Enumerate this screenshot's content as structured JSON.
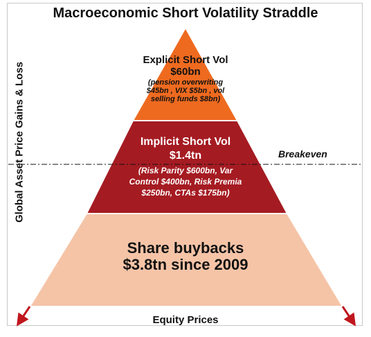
{
  "title": "Macroeconomic Short Volatility Straddle",
  "axes": {
    "y_label": "Global Asset Price Gains & Loss",
    "x_label": "Equity Prices"
  },
  "breakeven_label": "Breakeven",
  "layers": {
    "top": {
      "name": "Explicit Short Vol",
      "amount": "$60bn",
      "detail_line1": "(pension overwriting",
      "detail_line2": "$45bn , VIX $5bn , vol",
      "detail_line3": "selling funds $8bn)",
      "color": "#ee6a1f"
    },
    "middle": {
      "name": "Implicit Short Vol",
      "amount": "$1.4tn",
      "detail_line1": "(Risk Parity $600bn, Var",
      "detail_line2": "Control $400bn, Risk Premia",
      "detail_line3": "$250bn, CTAs $175bn)",
      "color": "#a51b22"
    },
    "base": {
      "name": "Share buybacks",
      "amount": "$3.8tn since 2009",
      "color": "#f5c4a7"
    }
  },
  "arrow_color": "#c0161e"
}
